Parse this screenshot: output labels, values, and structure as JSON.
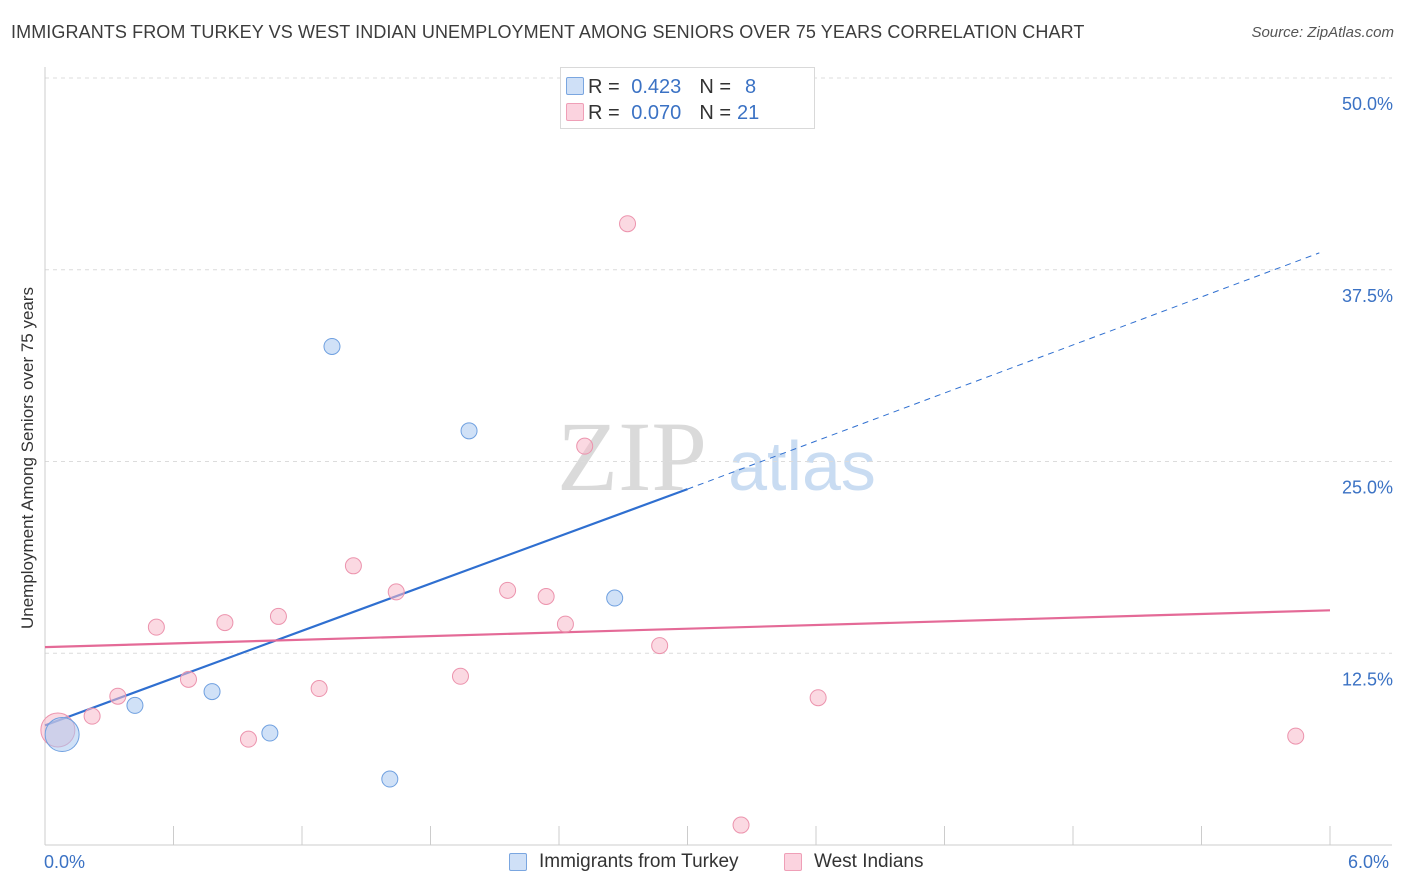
{
  "header": {
    "title": "IMMIGRANTS FROM TURKEY VS WEST INDIAN UNEMPLOYMENT AMONG SENIORS OVER 75 YEARS CORRELATION CHART",
    "source": "Source: ZipAtlas.com"
  },
  "watermark": {
    "zip": "ZIP",
    "atlas": "atlas"
  },
  "legend": {
    "rows": [
      {
        "r_label": "R =",
        "r_value": "0.423",
        "n_label": "N =",
        "n_value": "8",
        "color": "#a9c8f0"
      },
      {
        "r_label": "R =",
        "r_value": "0.070",
        "n_label": "N =",
        "n_value": "21",
        "color": "#f7b9cb"
      }
    ]
  },
  "chart_data": {
    "type": "scatter",
    "title": "IMMIGRANTS FROM TURKEY VS WEST INDIAN UNEMPLOYMENT AMONG SENIORS OVER 75 YEARS CORRELATION CHART",
    "xlabel": "",
    "ylabel": "Unemployment Among Seniors over 75 years",
    "xlim": [
      0,
      6.0
    ],
    "ylim": [
      0,
      50.0
    ],
    "x_tick_labels": [
      "0.0%",
      "6.0%"
    ],
    "y_tick_labels": [
      "12.5%",
      "25.0%",
      "37.5%",
      "50.0%"
    ],
    "y_ticks": [
      12.5,
      25.0,
      37.5,
      50.0
    ],
    "series": [
      {
        "name": "Immigrants from Turkey",
        "color": "#a9c8f0",
        "stroke": "#6fa0e0",
        "line_color": "#2f6fd0",
        "r": 0.423,
        "n": 8,
        "points": [
          {
            "x": 0.08,
            "y": 7.2,
            "big": true
          },
          {
            "x": 0.42,
            "y": 9.1
          },
          {
            "x": 0.78,
            "y": 10.0
          },
          {
            "x": 1.05,
            "y": 7.3
          },
          {
            "x": 1.34,
            "y": 32.5
          },
          {
            "x": 1.61,
            "y": 4.3
          },
          {
            "x": 1.98,
            "y": 27.0
          },
          {
            "x": 2.66,
            "y": 16.1
          }
        ],
        "trend": {
          "x0": 0.0,
          "y0": 7.8,
          "x1": 3.0,
          "y1": 23.2,
          "dash_to_x": 5.95,
          "dash_to_y": 38.6
        }
      },
      {
        "name": "West Indians",
        "color": "#f7b9cb",
        "stroke": "#ec93ad",
        "line_color": "#e46a97",
        "r": 0.07,
        "n": 21,
        "points": [
          {
            "x": 0.06,
            "y": 7.5,
            "big": true
          },
          {
            "x": 0.22,
            "y": 8.4
          },
          {
            "x": 0.34,
            "y": 9.7
          },
          {
            "x": 0.52,
            "y": 14.2
          },
          {
            "x": 0.67,
            "y": 10.8
          },
          {
            "x": 0.84,
            "y": 14.5
          },
          {
            "x": 0.95,
            "y": 6.9
          },
          {
            "x": 1.09,
            "y": 14.9
          },
          {
            "x": 1.28,
            "y": 10.2
          },
          {
            "x": 1.44,
            "y": 18.2
          },
          {
            "x": 1.64,
            "y": 16.5
          },
          {
            "x": 1.94,
            "y": 11.0
          },
          {
            "x": 2.16,
            "y": 16.6
          },
          {
            "x": 2.34,
            "y": 16.2
          },
          {
            "x": 2.43,
            "y": 14.4
          },
          {
            "x": 2.52,
            "y": 26.0
          },
          {
            "x": 2.72,
            "y": 40.5
          },
          {
            "x": 2.87,
            "y": 13.0
          },
          {
            "x": 3.25,
            "y": 1.3
          },
          {
            "x": 3.61,
            "y": 9.6
          },
          {
            "x": 5.84,
            "y": 7.1
          }
        ],
        "trend": {
          "x0": 0.0,
          "y0": 12.9,
          "x1": 6.0,
          "y1": 15.3
        }
      }
    ]
  },
  "bottom_legend": [
    {
      "label": "Immigrants from Turkey",
      "color": "#a9c8f0"
    },
    {
      "label": "West Indians",
      "color": "#f7b9cb"
    }
  ]
}
